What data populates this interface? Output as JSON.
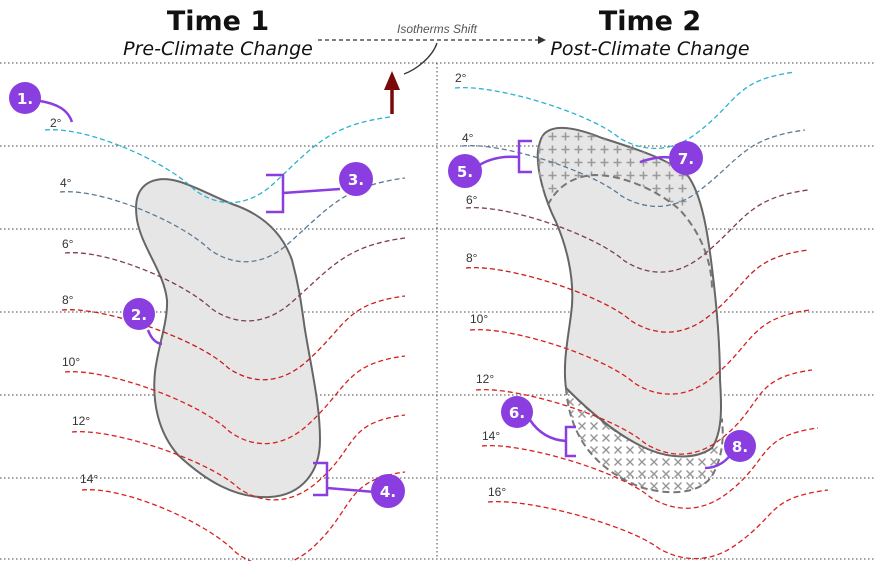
{
  "time1": {
    "title": "Time 1",
    "subtitle": "Pre-Climate Change"
  },
  "time2": {
    "title": "Time 2",
    "subtitle": "Post-Climate Change"
  },
  "shift_label": "Isotherms Shift",
  "left_isotherms": [
    "2°",
    "4°",
    "6°",
    "8°",
    "10°",
    "12°",
    "14°"
  ],
  "right_isotherms": [
    "2°",
    "4°",
    "6°",
    "8°",
    "10°",
    "12°",
    "14°",
    "16°"
  ],
  "markers": [
    "1.",
    "2.",
    "3.",
    "4.",
    "5.",
    "6.",
    "7.",
    "8."
  ],
  "colors": {
    "callout": "#8a3ee0",
    "arrow": "#7a0a0a",
    "isotherm_ramp": [
      "#2bb3d1",
      "#3a8fb3",
      "#5a7a96",
      "#6e5a72",
      "#7d3f52",
      "#a32828",
      "#c81e1e",
      "#d92020"
    ]
  }
}
